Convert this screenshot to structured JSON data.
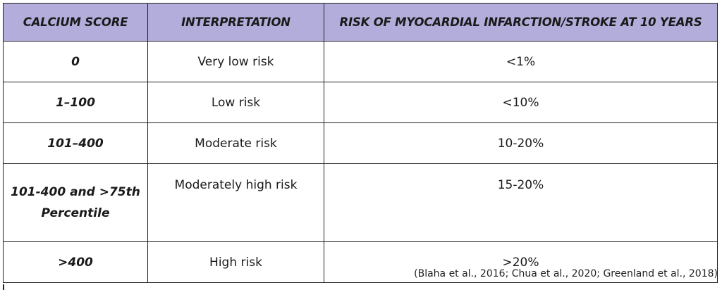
{
  "table": {
    "headers": {
      "score": "CALCIUM SCORE",
      "interpretation": "INTERPRETATION",
      "risk": "RISK OF MYOCARDIAL INFARCTION/STROKE AT 10 YEARS"
    },
    "rows": [
      {
        "score": "0",
        "interpretation": "Very low risk",
        "risk": "<1%"
      },
      {
        "score": "1–100",
        "interpretation": "Low risk",
        "risk": "<10%"
      },
      {
        "score": "101–400",
        "interpretation": "Moderate risk",
        "risk": "10-20%"
      },
      {
        "score_line1": "101-400 and >75th",
        "score_line2": "Percentile",
        "interpretation": "Moderately high risk",
        "risk": "15-20%"
      },
      {
        "score": ">400",
        "interpretation": "High risk",
        "risk": ">20%"
      }
    ]
  },
  "citation": "(Blaha et al., 2016; Chua et al., 2020; Greenland et al., 2018)",
  "colors": {
    "header_background": "#b3addb",
    "border": "#222222"
  }
}
